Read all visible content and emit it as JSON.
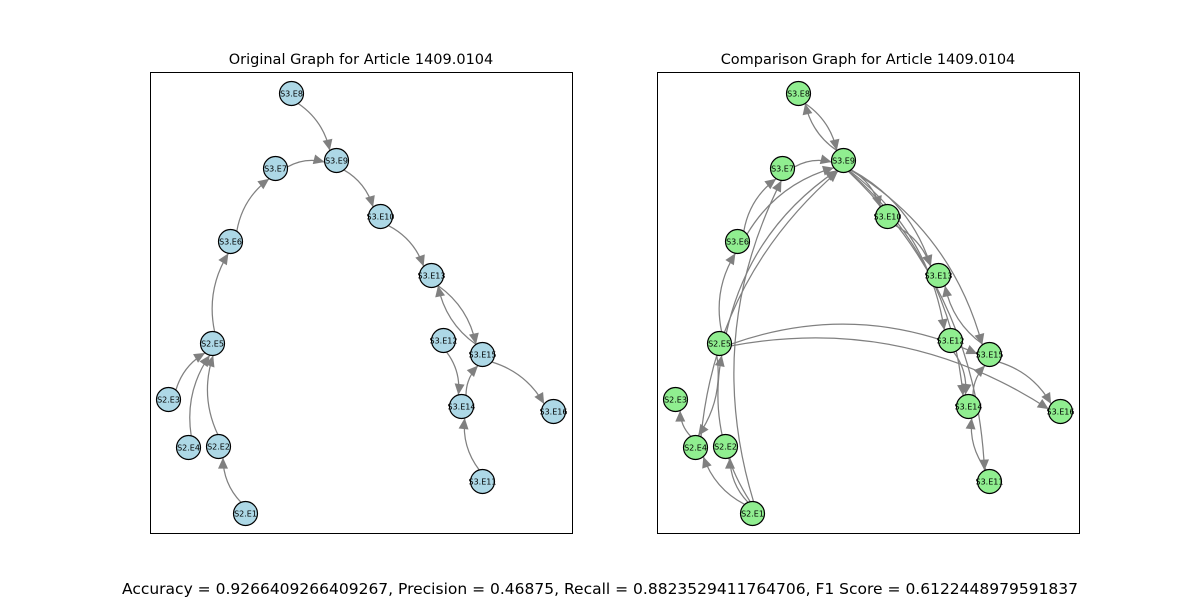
{
  "panels": [
    {
      "id": "left",
      "title": "Original Graph for Article 1409.0104",
      "node_color": "#add8e6",
      "edges": [
        [
          "S3.E8",
          "S3.E9"
        ],
        [
          "S3.E7",
          "S3.E9"
        ],
        [
          "S3.E6",
          "S3.E7"
        ],
        [
          "S2.E5",
          "S3.E6"
        ],
        [
          "S2.E3",
          "S2.E5"
        ],
        [
          "S2.E4",
          "S2.E5"
        ],
        [
          "S2.E2",
          "S2.E5"
        ],
        [
          "S2.E1",
          "S2.E2"
        ],
        [
          "S3.E9",
          "S3.E10"
        ],
        [
          "S3.E10",
          "S3.E13"
        ],
        [
          "S3.E13",
          "S3.E15"
        ],
        [
          "S3.E15",
          "S3.E13"
        ],
        [
          "S3.E12",
          "S3.E14"
        ],
        [
          "S3.E14",
          "S3.E15"
        ],
        [
          "S3.E15",
          "S3.E16"
        ],
        [
          "S3.E11",
          "S3.E14"
        ]
      ]
    },
    {
      "id": "right",
      "title": "Comparison Graph for Article 1409.0104",
      "node_color": "#90ee90",
      "edges": [
        [
          "S3.E8",
          "S3.E9"
        ],
        [
          "S3.E9",
          "S3.E8"
        ],
        [
          "S3.E7",
          "S3.E9"
        ],
        [
          "S3.E6",
          "S3.E7"
        ],
        [
          "S3.E6",
          "S3.E9"
        ],
        [
          "S2.E5",
          "S3.E6"
        ],
        [
          "S2.E5",
          "S3.E9"
        ],
        [
          "S2.E4",
          "S3.E9"
        ],
        [
          "S2.E1",
          "S3.E7"
        ],
        [
          "S2.E1",
          "S2.E4"
        ],
        [
          "S2.E1",
          "S2.E2"
        ],
        [
          "S2.E1",
          "S2.E5"
        ],
        [
          "S2.E4",
          "S2.E3"
        ],
        [
          "S3.E9",
          "S3.E10"
        ],
        [
          "S3.E9",
          "S3.E13"
        ],
        [
          "S3.E10",
          "S3.E13"
        ],
        [
          "S3.E9",
          "S3.E12"
        ],
        [
          "S3.E9",
          "S3.E15"
        ],
        [
          "S3.E9",
          "S3.E14"
        ],
        [
          "S3.E9",
          "S3.E11"
        ],
        [
          "S3.E12",
          "S3.E14"
        ],
        [
          "S3.E15",
          "S3.E13"
        ],
        [
          "S3.E14",
          "S3.E15"
        ],
        [
          "S3.E15",
          "S3.E16"
        ],
        [
          "S3.E11",
          "S3.E14"
        ],
        [
          "S2.E5",
          "S3.E15"
        ],
        [
          "S2.E5",
          "S3.E16"
        ],
        [
          "S2.E5",
          "S2.E4"
        ]
      ]
    }
  ],
  "metrics": "Accuracy = 0.9266409266409267, Precision = 0.46875, Recall = 0.8823529411764706, F1 Score = 0.6122448979591837"
}
